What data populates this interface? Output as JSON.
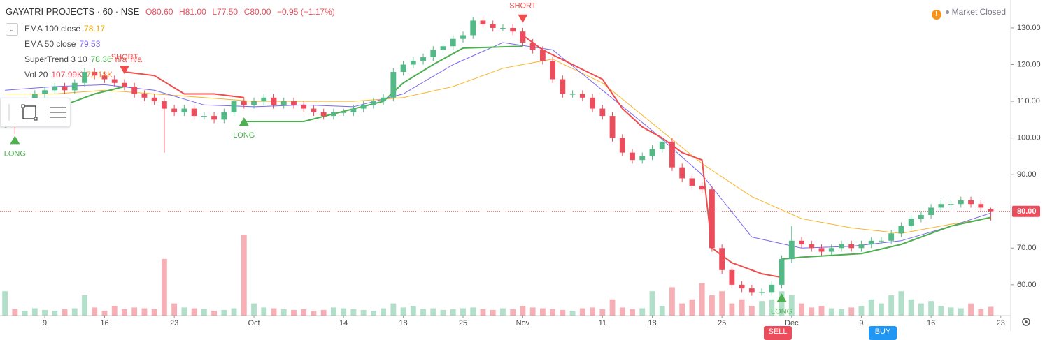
{
  "header": {
    "title": "GAYATRI PROJECTS · 60 · NSE",
    "ohlc": [
      "O80.60",
      "H81.00",
      "L77.50",
      "C80.00"
    ],
    "change": "−0.95 (−1.17%)",
    "status": "Market Closed"
  },
  "legend": [
    {
      "name": "EMA 100 close",
      "values": [
        "78.17"
      ],
      "colors": [
        "#f7a600"
      ]
    },
    {
      "name": "EMA 50 close",
      "values": [
        "79.53"
      ],
      "colors": [
        "#7b68ee"
      ]
    },
    {
      "name": "SuperTrend 3 10",
      "values": [
        "78.36",
        "n/a",
        "n/a"
      ],
      "colors": [
        "#4caf50",
        "#f24d4d",
        "#f24d4d"
      ]
    },
    {
      "name": "Vol 20",
      "values": [
        "107.99K",
        "72.18K"
      ],
      "colors": [
        "#eb4d5c",
        "#f0883e"
      ]
    }
  ],
  "trade_buttons": [
    "SELL",
    "BUY"
  ],
  "chart_data": {
    "type": "candlestick",
    "up_color": "#53b987",
    "down_color": "#eb4d5c",
    "xlim": [
      -0.5,
      101
    ],
    "ylim": [
      51.6,
      137.6
    ],
    "xticks": [
      {
        "value": 4,
        "label": "9"
      },
      {
        "value": 10,
        "label": "16"
      },
      {
        "value": 17,
        "label": "23"
      },
      {
        "value": 25,
        "label": "Oct"
      },
      {
        "value": 34,
        "label": "14"
      },
      {
        "value": 40,
        "label": "18"
      },
      {
        "value": 46,
        "label": "25"
      },
      {
        "value": 52,
        "label": "Nov"
      },
      {
        "value": 60,
        "label": "11"
      },
      {
        "value": 65,
        "label": "18"
      },
      {
        "value": 72,
        "label": "25"
      },
      {
        "value": 79,
        "label": "Dec"
      },
      {
        "value": 86,
        "label": "9"
      },
      {
        "value": 93,
        "label": "16"
      },
      {
        "value": 100,
        "label": "23"
      }
    ],
    "yticks": [
      {
        "value": 60,
        "label": "60.00"
      },
      {
        "value": 70,
        "label": "70.00"
      },
      {
        "value": 90,
        "label": "90.00"
      },
      {
        "value": 100,
        "label": "100.00"
      },
      {
        "value": 110,
        "label": "110.00"
      },
      {
        "value": 120,
        "label": "120.00"
      },
      {
        "value": 130,
        "label": "130.00"
      }
    ],
    "last_price": {
      "value": 80,
      "label": "80.00",
      "color": "#eb4d5c"
    },
    "open": [
      107,
      108,
      104,
      110,
      112,
      113,
      114,
      113,
      115,
      118,
      117,
      116,
      115,
      114,
      112,
      111,
      110,
      108,
      107,
      108,
      106,
      106,
      105,
      107,
      110,
      109,
      110,
      111,
      109,
      110,
      109,
      108,
      107,
      106,
      107,
      107,
      108,
      109,
      110,
      111,
      118,
      120,
      121,
      122,
      124,
      125,
      127,
      128,
      132,
      131,
      130,
      130,
      129,
      126,
      124,
      121,
      116,
      112,
      112,
      111,
      108,
      106,
      100,
      96,
      94,
      95,
      97,
      99,
      92,
      89,
      87,
      86,
      70,
      64,
      60,
      59,
      58,
      58,
      60,
      67,
      72,
      71,
      70,
      69,
      70,
      71,
      70,
      71,
      72,
      72,
      74,
      76,
      78,
      79,
      81,
      82,
      82,
      83,
      82,
      80.6
    ],
    "high": [
      109,
      109,
      111,
      113,
      114,
      115,
      115,
      116,
      119,
      119,
      118,
      117,
      116,
      115,
      113,
      112,
      111,
      109,
      109,
      109,
      107,
      107,
      108,
      111,
      111,
      111,
      112,
      112,
      111,
      111,
      110,
      109,
      108,
      108,
      108,
      109,
      110,
      111,
      112,
      119,
      121,
      122,
      123,
      125,
      126,
      128,
      129,
      133,
      133,
      132,
      131,
      131,
      130,
      127,
      125,
      122,
      117,
      113,
      113,
      112,
      109,
      107,
      101,
      97,
      96,
      98,
      100,
      100,
      93,
      90,
      88,
      87,
      71,
      65,
      61,
      60,
      59,
      61,
      68,
      76,
      73,
      72,
      71,
      71,
      72,
      72,
      72,
      73,
      73,
      75,
      77,
      79,
      80,
      82,
      83,
      83,
      84,
      84,
      83,
      81
    ],
    "low": [
      106,
      101,
      103,
      109,
      111,
      112,
      112,
      112,
      114,
      116,
      115,
      114,
      113,
      111,
      110,
      109,
      96,
      106,
      106,
      105,
      105,
      104,
      104,
      106,
      108,
      108,
      109,
      108,
      108,
      108,
      107,
      106,
      105,
      105,
      106,
      106,
      107,
      108,
      109,
      110,
      117,
      119,
      120,
      121,
      123,
      124,
      126,
      127,
      130,
      129,
      129,
      128,
      125,
      123,
      120,
      115,
      111,
      111,
      110,
      107,
      105,
      99,
      95,
      93,
      93,
      94,
      96,
      91,
      88,
      86,
      85,
      69,
      63,
      59,
      58,
      57,
      57,
      57,
      59,
      66,
      70,
      69,
      68,
      68,
      69,
      69,
      69,
      70,
      71,
      71,
      73,
      75,
      77,
      78,
      80,
      81,
      81,
      81,
      80,
      77.5
    ],
    "close": [
      108,
      104,
      110,
      112,
      113,
      114,
      113,
      115,
      118,
      117,
      116,
      115,
      114,
      112,
      111,
      110,
      108,
      107,
      108,
      106,
      106,
      105,
      107,
      110,
      109,
      110,
      111,
      109,
      110,
      109,
      108,
      107,
      106,
      107,
      107,
      108,
      109,
      110,
      111,
      118,
      120,
      121,
      122,
      124,
      125,
      127,
      128,
      132,
      131,
      130,
      130,
      129,
      126,
      124,
      121,
      116,
      112,
      112,
      111,
      108,
      106,
      100,
      96,
      94,
      95,
      97,
      99,
      92,
      89,
      87,
      86,
      70,
      64,
      60,
      59,
      58,
      58,
      60,
      67,
      72,
      71,
      70,
      69,
      70,
      71,
      70,
      71,
      72,
      72,
      74,
      76,
      78,
      79,
      81,
      82,
      82,
      83,
      82,
      81,
      80
    ],
    "volume": {
      "vlim": [
        0,
        3900
      ],
      "values": [
        300,
        80,
        60,
        90,
        70,
        60,
        80,
        90,
        250,
        100,
        60,
        120,
        80,
        100,
        90,
        80,
        700,
        150,
        100,
        90,
        80,
        60,
        70,
        90,
        1000,
        150,
        100,
        90,
        80,
        70,
        80,
        60,
        70,
        100,
        90,
        80,
        70,
        60,
        90,
        150,
        100,
        120,
        80,
        90,
        70,
        80,
        90,
        100,
        80,
        70,
        90,
        80,
        120,
        100,
        90,
        80,
        70,
        60,
        90,
        100,
        80,
        200,
        100,
        80,
        90,
        300,
        120,
        350,
        150,
        200,
        400,
        250,
        300,
        150,
        200,
        120,
        180,
        200,
        300,
        250,
        150,
        100,
        120,
        90,
        80,
        100,
        120,
        200,
        150,
        250,
        300,
        200,
        150,
        180,
        120,
        100,
        90,
        150,
        80,
        107.99
      ]
    },
    "series": [
      {
        "name": "EMA 100 close",
        "color": "#f7b42c",
        "x": [
          0,
          5,
          10,
          15,
          20,
          25,
          30,
          35,
          40,
          45,
          50,
          55,
          60,
          65,
          70,
          75,
          80,
          85,
          90,
          95,
          99
        ],
        "values": [
          112,
          112,
          113,
          112,
          111,
          110,
          110,
          110,
          111,
          114,
          119,
          121.5,
          115,
          104,
          93,
          84,
          78,
          75.5,
          74,
          76.5,
          78.17
        ]
      },
      {
        "name": "EMA 50 close",
        "color": "#7b68ee",
        "x": [
          0,
          5,
          10,
          15,
          20,
          25,
          30,
          35,
          40,
          45,
          50,
          55,
          60,
          65,
          70,
          75,
          80,
          85,
          90,
          95,
          99
        ],
        "values": [
          113,
          114,
          114.5,
          113,
          109,
          108.5,
          109,
          108.5,
          112,
          120,
          126,
          124,
          113,
          102,
          90,
          73,
          70,
          70.5,
          72,
          76,
          79.53
        ]
      },
      {
        "name": "SuperTrend up",
        "color": "#4caf50",
        "x": [
          0,
          3,
          6,
          9,
          12,
          18,
          24,
          30,
          38,
          40,
          43,
          46,
          52,
          65,
          78,
          80,
          86,
          90,
          95,
          99
        ],
        "values": [
          103,
          106,
          109,
          112,
          114,
          null,
          104.5,
          104.5,
          110,
          115,
          120,
          124.5,
          125,
          null,
          67,
          67.5,
          68.5,
          71,
          76,
          78.36
        ]
      },
      {
        "name": "SuperTrend down",
        "color": "#f24d4d",
        "x": [
          12,
          15,
          18,
          21,
          24,
          38,
          52,
          54,
          57,
          60,
          62,
          64,
          66,
          68,
          70,
          71,
          73,
          76,
          78
        ],
        "values": [
          118,
          117,
          112,
          112,
          111,
          null,
          128,
          124,
          120,
          116,
          108,
          103,
          100,
          96,
          94,
          70,
          66,
          63,
          62
        ]
      }
    ],
    "signals": [
      {
        "label": "LONG",
        "index": 1,
        "price": 101,
        "color": "#4caf50"
      },
      {
        "label": "SHORT",
        "index": 12,
        "price": 117,
        "color": "#f24d4d"
      },
      {
        "label": "LONG",
        "index": 24,
        "price": 106,
        "color": "#4caf50"
      },
      {
        "label": "SHORT",
        "index": 52,
        "price": 131,
        "color": "#f24d4d"
      },
      {
        "label": "LONG",
        "index": 78,
        "price": 58,
        "color": "#4caf50"
      }
    ]
  }
}
